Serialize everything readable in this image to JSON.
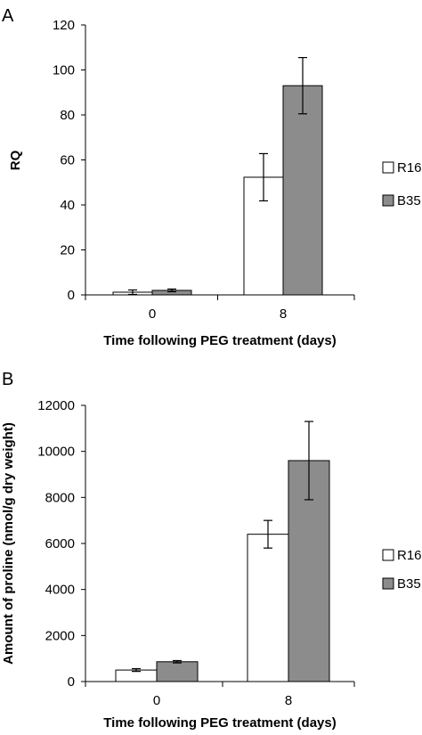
{
  "panels": [
    {
      "letter": "A",
      "chart_data": {
        "type": "bar",
        "categories": [
          "0",
          "8"
        ],
        "series": [
          {
            "name": "R16",
            "color": "#ffffff",
            "values": [
              1.2,
              52.3
            ],
            "errors": [
              1.0,
              10.5
            ]
          },
          {
            "name": "B35",
            "color": "#8c8c8c",
            "values": [
              2.0,
              93.0
            ],
            "errors": [
              0.6,
              12.5
            ]
          }
        ],
        "xlabel": "Time following PEG treatment (days)",
        "ylabel": "RQ",
        "ylim": [
          0,
          120
        ],
        "yticks": [
          0,
          20,
          40,
          60,
          80,
          100,
          120
        ],
        "legend_position": "right (clipped)"
      }
    },
    {
      "letter": "B",
      "chart_data": {
        "type": "bar",
        "categories": [
          "0",
          "8"
        ],
        "series": [
          {
            "name": "R16",
            "color": "#ffffff",
            "values": [
              500,
              6400
            ],
            "errors": [
              60,
              600
            ]
          },
          {
            "name": "B35",
            "color": "#8c8c8c",
            "values": [
              860,
              9600
            ],
            "errors": [
              50,
              1700
            ]
          }
        ],
        "xlabel": "Time following PEG treatment (days)",
        "ylabel": "Amount of proline (nmol/g dry weight)",
        "ylim": [
          0,
          12000
        ],
        "yticks": [
          0,
          2000,
          4000,
          6000,
          8000,
          10000,
          12000
        ],
        "legend_position": "right (clipped)"
      }
    }
  ]
}
